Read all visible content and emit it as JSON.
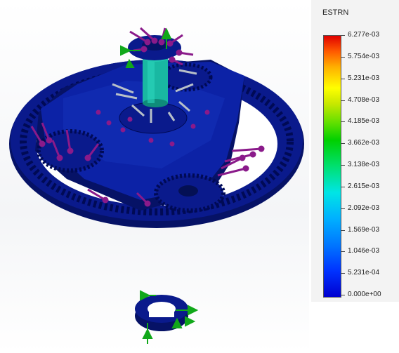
{
  "legend": {
    "title": "ESTRN",
    "ticks": [
      "6.277e-03",
      "5.754e-03",
      "5.231e-03",
      "4.708e-03",
      "4.185e-03",
      "3.662e-03",
      "3.138e-03",
      "2.615e-03",
      "2.092e-03",
      "1.569e-03",
      "1.046e-03",
      "5.231e-04",
      "0.000e+00"
    ]
  },
  "colors": {
    "part": "#0a1a8c",
    "part_dark": "#061266",
    "shaft": "#19b8a2",
    "load_arrow": "#8a1a8a",
    "fixture_arrow": "#11a81a",
    "bearing_arrow": "#b8c0c8"
  }
}
